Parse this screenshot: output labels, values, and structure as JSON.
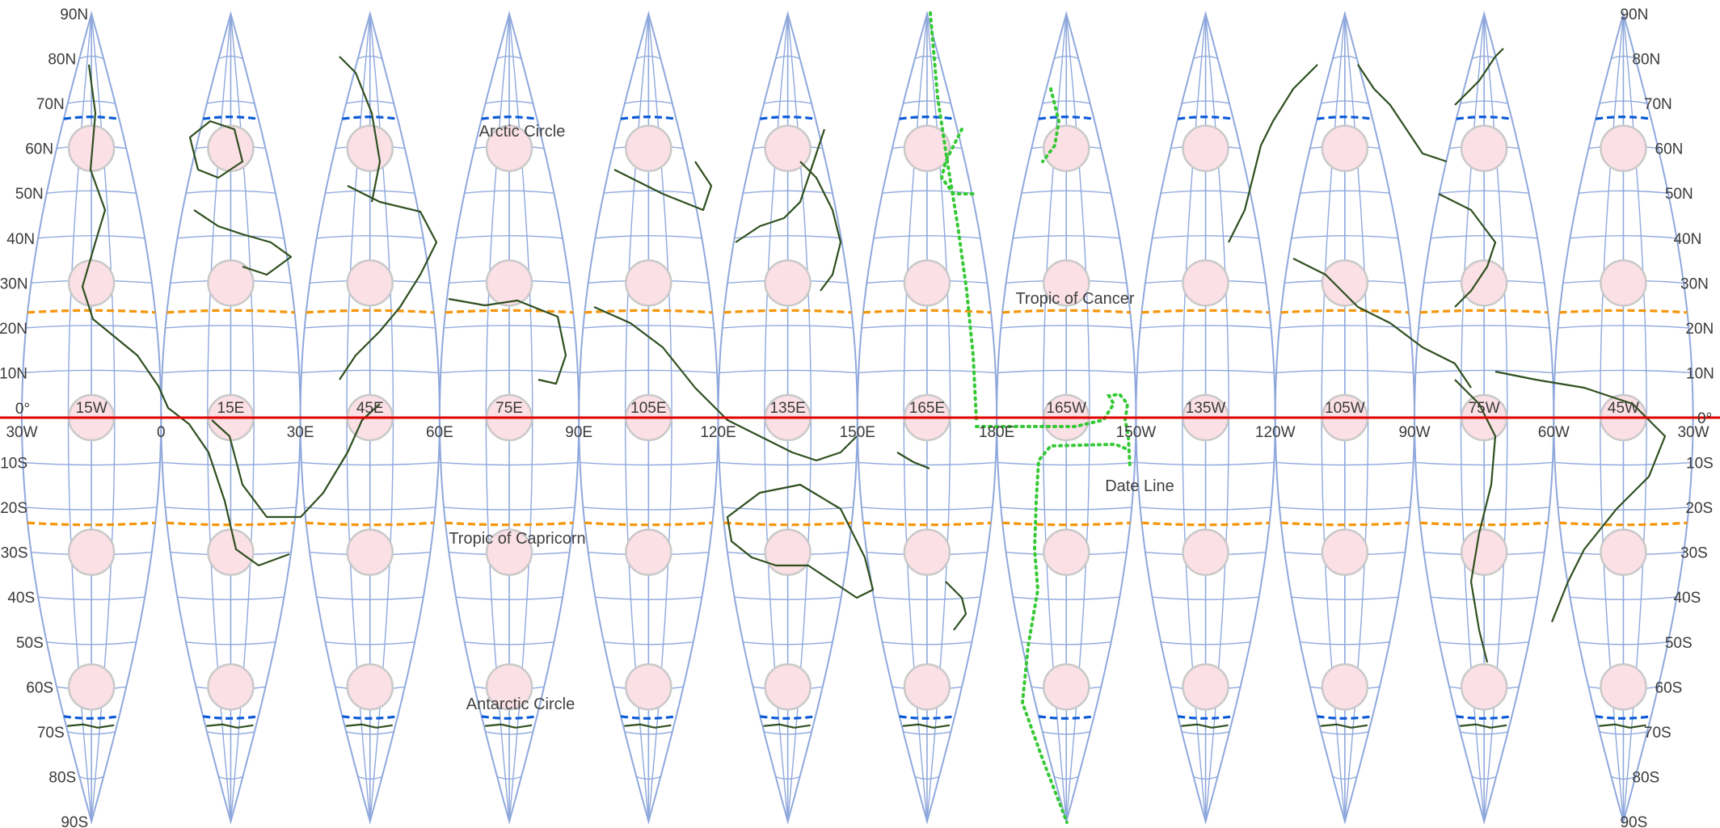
{
  "map": {
    "colors": {
      "graticule": "#8fa8dc",
      "coastline": "#2f4f1f",
      "equator": "#e00000",
      "polar_circle": "#0a5ad8",
      "tropic": "#f5950a",
      "date_line": "#35c935",
      "indicatrix_fill": "#fbe0e6",
      "indicatrix_stroke": "#c9c9c9"
    },
    "lat_labels_left": [
      {
        "lat": 90,
        "text": "90N"
      },
      {
        "lat": 80,
        "text": "80N"
      },
      {
        "lat": 70,
        "text": "70N"
      },
      {
        "lat": 60,
        "text": "60N"
      },
      {
        "lat": 50,
        "text": "50N"
      },
      {
        "lat": 40,
        "text": "40N"
      },
      {
        "lat": 30,
        "text": "30N"
      },
      {
        "lat": 20,
        "text": "20N"
      },
      {
        "lat": 10,
        "text": "10N"
      },
      {
        "lat": -10,
        "text": "10S"
      },
      {
        "lat": -20,
        "text": "20S"
      },
      {
        "lat": -30,
        "text": "30S"
      },
      {
        "lat": -40,
        "text": "40S"
      },
      {
        "lat": -50,
        "text": "50S"
      },
      {
        "lat": -60,
        "text": "60S"
      },
      {
        "lat": -70,
        "text": "70S"
      },
      {
        "lat": -80,
        "text": "80S"
      },
      {
        "lat": -90,
        "text": "90S"
      }
    ],
    "lat_labels_right": [
      {
        "lat": 90,
        "text": "90N"
      },
      {
        "lat": 80,
        "text": "80N"
      },
      {
        "lat": 70,
        "text": "70N"
      },
      {
        "lat": 60,
        "text": "60N"
      },
      {
        "lat": 50,
        "text": "50N"
      },
      {
        "lat": 40,
        "text": "40N"
      },
      {
        "lat": 30,
        "text": "30N"
      },
      {
        "lat": 20,
        "text": "20N"
      },
      {
        "lat": 10,
        "text": "10N"
      },
      {
        "lat": 0,
        "text": "0°"
      },
      {
        "lat": -10,
        "text": "10S"
      },
      {
        "lat": -20,
        "text": "20S"
      },
      {
        "lat": -30,
        "text": "30S"
      },
      {
        "lat": -40,
        "text": "40S"
      },
      {
        "lat": -50,
        "text": "50S"
      },
      {
        "lat": -60,
        "text": "60S"
      },
      {
        "lat": -70,
        "text": "70S"
      },
      {
        "lat": -80,
        "text": "80S"
      },
      {
        "lat": -90,
        "text": "90S"
      }
    ],
    "left_zero_label": "0°",
    "boundary_labels": [
      "30W",
      "0",
      "30E",
      "60E",
      "90E",
      "120E",
      "150E",
      "180E",
      "150W",
      "120W",
      "90W",
      "60W",
      "30W"
    ],
    "gore_centers": [
      "15W",
      "15E",
      "45E",
      "75E",
      "105E",
      "135E",
      "165E",
      "165W",
      "135W",
      "105W",
      "75W",
      "45W"
    ],
    "features": {
      "arctic_circle": "Arctic Circle",
      "tropic_of_cancer": "Tropic of Cancer",
      "tropic_of_capricorn": "Tropic of Capricorn",
      "antarctic_circle": "Antarctic Circle",
      "date_line": "Date Line"
    }
  }
}
